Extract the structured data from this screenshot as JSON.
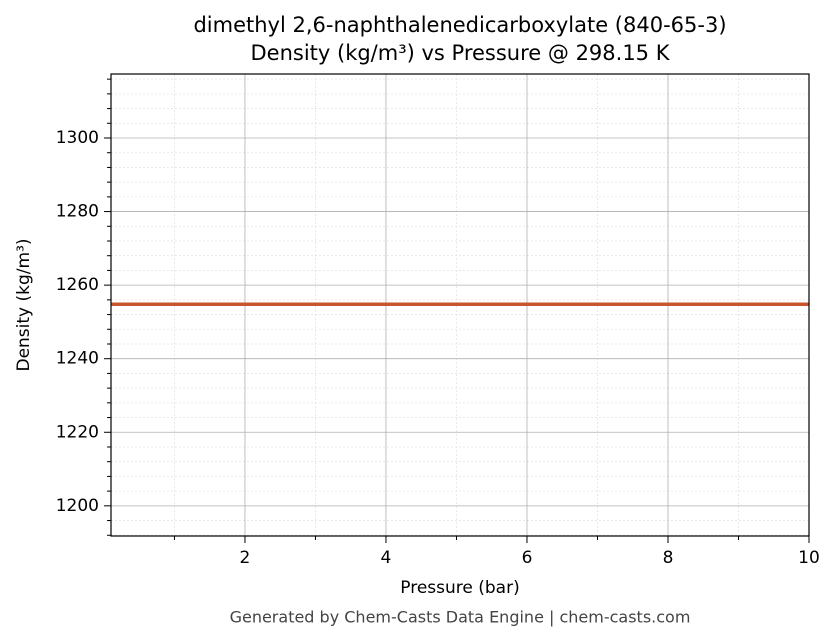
{
  "chart_data": {
    "type": "line",
    "title": "dimethyl 2,6-naphthalenedicarboxylate (840-65-3)",
    "subtitle": "Density (kg/m³) vs Pressure @ 298.15 K",
    "x_label": "Pressure (bar)",
    "y_label": "Density (kg/m³)",
    "footer": "Generated by Chem-Casts Data Engine | chem-casts.com",
    "x": [
      0.1,
      10
    ],
    "series": [
      {
        "name": "Density",
        "color": "#c8552b",
        "values": [
          1254.8,
          1254.8
        ]
      }
    ],
    "xlim": [
      0.1,
      10
    ],
    "xticks": [
      2,
      4,
      6,
      8,
      10
    ],
    "xminor": [
      1,
      3,
      5,
      7,
      9
    ],
    "ylim": [
      1191.8,
      1317.4
    ],
    "yticks": [
      1200,
      1220,
      1240,
      1260,
      1280,
      1300
    ],
    "yminor": [
      1192,
      1196,
      1204,
      1208,
      1212,
      1216,
      1224,
      1228,
      1232,
      1236,
      1244,
      1248,
      1252,
      1256,
      1264,
      1268,
      1272,
      1276,
      1284,
      1288,
      1292,
      1296,
      1304,
      1308,
      1312,
      1316
    ],
    "grid": true
  }
}
